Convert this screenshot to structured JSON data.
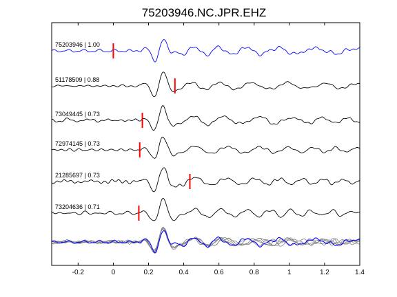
{
  "chart_data": {
    "type": "line",
    "title": "75203946.NC.JPR.EHZ",
    "xlabel": "",
    "ylabel": "",
    "xlim": [
      -0.35,
      1.4
    ],
    "xticks": [
      -0.2,
      0,
      0.2,
      0.4,
      0.6,
      0.8,
      1,
      1.2,
      1.4
    ],
    "xtick_labels": [
      "-0.2",
      "0",
      "0.2",
      "0.4",
      "0.6",
      "0.8",
      "1",
      "1.2",
      "1.4"
    ],
    "grid": false,
    "legend": "none",
    "colors": {
      "reference": "#0000ff",
      "trace": "#000000",
      "overlay": "#808080",
      "pick": "#ff0000"
    },
    "traces": [
      {
        "label": "75203946 | 1.00",
        "event_id": "75203946",
        "correlation": 1.0,
        "pick_time": 0.0,
        "color": "#0000ff",
        "scale": 1.0
      },
      {
        "label": "51178509 | 0.88",
        "event_id": "51178509",
        "correlation": 0.88,
        "pick_time": 0.35,
        "color": "#000000",
        "scale": 0.95
      },
      {
        "label": "73049445 | 0.73",
        "event_id": "73049445",
        "correlation": 0.73,
        "pick_time": 0.165,
        "color": "#000000",
        "scale": 1.0
      },
      {
        "label": "72974145 | 0.73",
        "event_id": "72974145",
        "correlation": 0.73,
        "pick_time": 0.15,
        "color": "#000000",
        "scale": 0.9
      },
      {
        "label": "21285697 | 0.73",
        "event_id": "21285697",
        "correlation": 0.73,
        "pick_time": 0.435,
        "color": "#000000",
        "scale": 0.95
      },
      {
        "label": "73204636 | 0.71",
        "event_id": "73204636",
        "correlation": 0.71,
        "pick_time": 0.145,
        "color": "#000000",
        "scale": 1.0
      }
    ],
    "stack": {
      "label": "",
      "color_lines": "#808080",
      "color_reference": "#0000ff"
    }
  }
}
